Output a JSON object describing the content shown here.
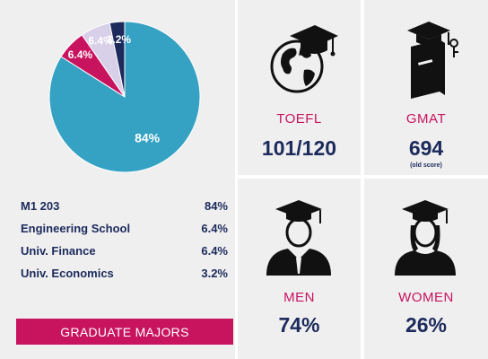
{
  "chart_data": {
    "type": "pie",
    "slices": [
      {
        "label": "M1 203",
        "value": 84,
        "display": "84%",
        "color": "#35a2c4"
      },
      {
        "label": "Engineering School",
        "value": 6.4,
        "display": "6.4%",
        "color": "#c8135f"
      },
      {
        "label": "Univ. Finance",
        "value": 6.4,
        "display": "6.4%",
        "color": "#d8cfe8"
      },
      {
        "label": "Univ. Economics",
        "value": 3.2,
        "display": "3.2%",
        "color": "#1c2a5c"
      }
    ],
    "slice_labels": [
      "84%",
      "6.4%",
      "6.4%",
      "3.2%"
    ],
    "title": "GRADUATE MAJORS"
  },
  "legend": [
    {
      "label": "M1 203",
      "value": "84%"
    },
    {
      "label": "Engineering School",
      "value": "6.4%"
    },
    {
      "label": "Univ. Finance",
      "value": "6.4%"
    },
    {
      "label": "Univ. Economics",
      "value": "3.2%"
    }
  ],
  "footer": {
    "label": "GRADUATE MAJORS"
  },
  "stats": {
    "toefl": {
      "label": "TOEFL",
      "value": "101/120",
      "icon": "globe-graduation-cap-icon"
    },
    "gmat": {
      "label": "GMAT",
      "value": "694",
      "note": "(old score)",
      "icon": "book-graduation-cap-icon"
    },
    "men": {
      "label": "MEN",
      "value": "74%",
      "icon": "male-graduate-icon"
    },
    "women": {
      "label": "WOMEN",
      "value": "26%",
      "icon": "female-graduate-icon"
    }
  },
  "colors": {
    "accent": "#c8135f",
    "navy": "#1c2a5c",
    "panel": "#efefef",
    "teal": "#35a2c4",
    "lavender": "#d8cfe8"
  }
}
